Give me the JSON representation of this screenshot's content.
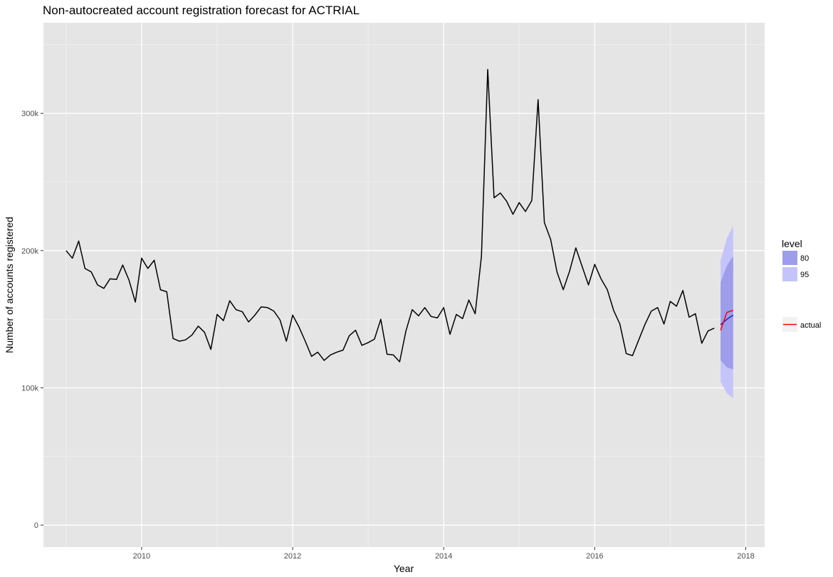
{
  "chart_data": {
    "type": "line",
    "title": "Non-autocreated account registration forecast for ACTRIAL",
    "xlabel": "Year",
    "ylabel": "Number of accounts registered",
    "xlim": [
      2008.7,
      2018.25
    ],
    "ylim": [
      -16000,
      366000
    ],
    "x_ticks": [
      2010,
      2012,
      2014,
      2016,
      2018
    ],
    "x_tick_labels": [
      "2010",
      "2012",
      "2014",
      "2016",
      "2018"
    ],
    "y_ticks": [
      0,
      100000,
      200000,
      300000
    ],
    "y_tick_labels": [
      "0",
      "100k",
      "200k",
      "300k"
    ],
    "grid": true,
    "legend_position": "right",
    "colors": {
      "panel": "#e5e5e5",
      "grid": "#ffffff",
      "history": "#000000",
      "forecast": "#1f1fbf",
      "actual": "#ff0000",
      "band80": "#9d9deb",
      "band95": "#c4c4fa"
    },
    "series": [
      {
        "values": [
          [
            2009.0,
            200000
          ],
          [
            2009.083,
            194500
          ],
          [
            2009.167,
            207000
          ],
          [
            2009.25,
            187000
          ],
          [
            2009.333,
            184500
          ],
          [
            2009.417,
            175000
          ],
          [
            2009.5,
            172500
          ],
          [
            2009.583,
            179500
          ],
          [
            2009.667,
            179000
          ],
          [
            2009.75,
            189500
          ],
          [
            2009.833,
            178500
          ],
          [
            2009.917,
            162500
          ],
          [
            2010.0,
            194500
          ],
          [
            2010.083,
            187000
          ],
          [
            2010.167,
            193000
          ],
          [
            2010.25,
            171500
          ],
          [
            2010.333,
            170000
          ],
          [
            2010.417,
            136000
          ],
          [
            2010.5,
            134000
          ],
          [
            2010.583,
            135000
          ],
          [
            2010.667,
            138500
          ],
          [
            2010.75,
            145000
          ],
          [
            2010.833,
            140500
          ],
          [
            2010.917,
            128000
          ],
          [
            2011.0,
            153500
          ],
          [
            2011.083,
            149000
          ],
          [
            2011.167,
            163500
          ],
          [
            2011.25,
            157000
          ],
          [
            2011.333,
            155500
          ],
          [
            2011.417,
            148000
          ],
          [
            2011.5,
            153000
          ],
          [
            2011.583,
            159000
          ],
          [
            2011.667,
            158500
          ],
          [
            2011.75,
            156000
          ],
          [
            2011.833,
            149500
          ],
          [
            2011.917,
            134000
          ],
          [
            2012.0,
            153000
          ],
          [
            2012.083,
            144500
          ],
          [
            2012.167,
            134000
          ],
          [
            2012.25,
            123000
          ],
          [
            2012.333,
            126000
          ],
          [
            2012.417,
            120000
          ],
          [
            2012.5,
            124000
          ],
          [
            2012.583,
            126000
          ],
          [
            2012.667,
            127500
          ],
          [
            2012.75,
            138000
          ],
          [
            2012.833,
            142000
          ],
          [
            2012.917,
            131000
          ],
          [
            2013.0,
            133000
          ],
          [
            2013.083,
            135500
          ],
          [
            2013.167,
            150000
          ],
          [
            2013.25,
            124500
          ],
          [
            2013.333,
            124000
          ],
          [
            2013.417,
            119000
          ],
          [
            2013.5,
            141500
          ],
          [
            2013.583,
            157000
          ],
          [
            2013.667,
            152500
          ],
          [
            2013.75,
            158500
          ],
          [
            2013.833,
            152000
          ],
          [
            2013.917,
            151000
          ],
          [
            2014.0,
            158500
          ],
          [
            2014.083,
            139000
          ],
          [
            2014.167,
            153500
          ],
          [
            2014.25,
            150500
          ],
          [
            2014.333,
            164000
          ],
          [
            2014.417,
            154000
          ],
          [
            2014.5,
            196000
          ],
          [
            2014.583,
            332000
          ],
          [
            2014.667,
            238500
          ],
          [
            2014.75,
            242000
          ],
          [
            2014.833,
            236000
          ],
          [
            2014.917,
            226500
          ],
          [
            2015.0,
            235000
          ],
          [
            2015.083,
            228500
          ],
          [
            2015.167,
            236500
          ],
          [
            2015.25,
            310000
          ],
          [
            2015.333,
            220500
          ],
          [
            2015.417,
            208000
          ],
          [
            2015.5,
            184500
          ],
          [
            2015.583,
            171500
          ],
          [
            2015.667,
            185000
          ],
          [
            2015.75,
            202000
          ],
          [
            2015.833,
            188500
          ],
          [
            2015.917,
            175000
          ],
          [
            2016.0,
            190000
          ],
          [
            2016.083,
            179500
          ],
          [
            2016.167,
            171500
          ],
          [
            2016.25,
            156500
          ],
          [
            2016.333,
            146500
          ],
          [
            2016.417,
            125000
          ],
          [
            2016.5,
            123500
          ],
          [
            2016.583,
            135000
          ],
          [
            2016.667,
            146500
          ],
          [
            2016.75,
            156000
          ],
          [
            2016.833,
            158500
          ],
          [
            2016.917,
            146500
          ],
          [
            2017.0,
            163000
          ],
          [
            2017.083,
            159500
          ],
          [
            2017.167,
            171000
          ],
          [
            2017.25,
            151500
          ],
          [
            2017.333,
            154000
          ],
          [
            2017.417,
            132500
          ],
          [
            2017.5,
            141500
          ],
          [
            2017.583,
            143500
          ]
        ]
      },
      {
        "values": [
          [
            2017.667,
            146000
          ],
          [
            2017.75,
            150000
          ],
          [
            2017.833,
            153000
          ]
        ]
      },
      {
        "name": "actual",
        "values": [
          [
            2017.667,
            142000
          ],
          [
            2017.75,
            155000
          ],
          [
            2017.833,
            156500
          ]
        ]
      }
    ],
    "intervals": [
      {
        "level": "95",
        "x": [
          2017.667,
          2017.75,
          2017.833
        ],
        "lower": [
          104500,
          96000,
          92500
        ],
        "upper": [
          193000,
          209000,
          218000
        ]
      },
      {
        "level": "80",
        "x": [
          2017.667,
          2017.75,
          2017.833
        ],
        "lower": [
          120000,
          115000,
          113500
        ],
        "upper": [
          177000,
          189000,
          196000
        ]
      }
    ],
    "legend": {
      "title": "level",
      "fill_items": [
        {
          "label": "80",
          "color": "#9d9deb"
        },
        {
          "label": "95",
          "color": "#c4c4fa"
        }
      ],
      "line_items": [
        {
          "label": "actual",
          "color": "#ff0000"
        }
      ]
    }
  }
}
